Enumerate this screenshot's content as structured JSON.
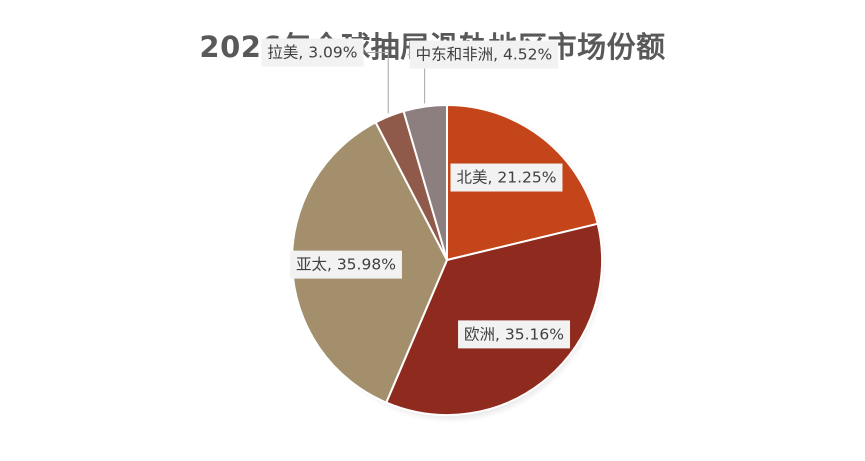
{
  "chart_data": {
    "type": "pie",
    "title": "2026年全球抽屉滑轨地区市场份额",
    "slices": [
      {
        "label": "北美",
        "value": 21.25,
        "display": "21.25%",
        "color": "#c5451b"
      },
      {
        "label": "欧洲",
        "value": 35.16,
        "display": "35.16%",
        "color": "#8e2a1e"
      },
      {
        "label": "亚太",
        "value": 35.98,
        "display": "35.98%",
        "color": "#a38f6b"
      },
      {
        "label": "拉美",
        "value": 3.09,
        "display": "3.09%",
        "color": "#8f5a4a"
      },
      {
        "label": "中东和非洲",
        "value": 4.52,
        "display": "4.52%",
        "color": "#8d7f80"
      }
    ],
    "start_angle_deg": 0,
    "direction": "clockwise",
    "legend": "none",
    "data_labels": "category, percentage"
  }
}
